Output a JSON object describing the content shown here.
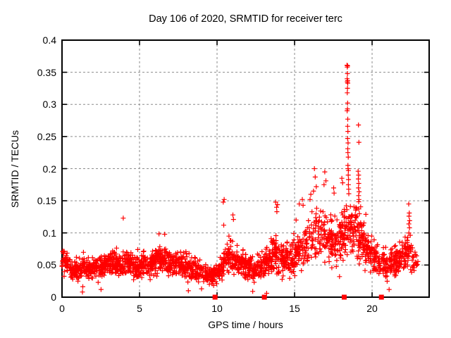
{
  "chart": {
    "title": "Day 106 of 2020, SRMTID for receiver terc",
    "xlabel": "GPS time / hours",
    "ylabel": "SRMTID / TECUs"
  },
  "chart_data": {
    "type": "scatter",
    "title": "Day 106 of 2020, SRMTID for receiver terc",
    "xlabel": "GPS time / hours",
    "ylabel": "SRMTID / TECUs",
    "xlim": [
      0,
      23.68
    ],
    "ylim": [
      0,
      0.4
    ],
    "xticks": [
      0,
      5,
      10,
      15,
      20
    ],
    "yticks": [
      0,
      0.05,
      0.1,
      0.15,
      0.2,
      0.25,
      0.3,
      0.35,
      0.4
    ],
    "xtick_labels": [
      "0",
      "5",
      "10",
      "15",
      "20"
    ],
    "ytick_labels": [
      "0",
      "0.05",
      "0.1",
      "0.15",
      "0.2",
      "0.25",
      "0.3",
      "0.35",
      "0.4"
    ],
    "grid": true,
    "legend": "none",
    "marker_color": "#ff0000",
    "grid_color": "#8c8c8c",
    "frame_color": "#000000",
    "series": [
      {
        "name": "srmtid-plus-cloud",
        "marker": "plus",
        "generator": {
          "count": 2300,
          "seed": 1062020,
          "x_max": 23.0,
          "flier_prob": 0.07,
          "flier_scale": 1.45,
          "envelope": [
            [
              0.0,
              0.058,
              0.03,
              1.0
            ],
            [
              0.3,
              0.05,
              0.028,
              1.0
            ],
            [
              0.8,
              0.042,
              0.022,
              1.0
            ],
            [
              1.3,
              0.048,
              0.026,
              1.0
            ],
            [
              1.8,
              0.044,
              0.022,
              1.0
            ],
            [
              2.3,
              0.047,
              0.026,
              1.0
            ],
            [
              2.8,
              0.05,
              0.026,
              1.0
            ],
            [
              3.3,
              0.053,
              0.028,
              1.0
            ],
            [
              3.8,
              0.05,
              0.026,
              1.0
            ],
            [
              4.3,
              0.053,
              0.028,
              1.0
            ],
            [
              4.8,
              0.048,
              0.026,
              1.0
            ],
            [
              5.3,
              0.05,
              0.028,
              1.0
            ],
            [
              5.8,
              0.055,
              0.03,
              1.0
            ],
            [
              6.3,
              0.06,
              0.032,
              1.0
            ],
            [
              6.8,
              0.057,
              0.03,
              1.0
            ],
            [
              7.3,
              0.052,
              0.028,
              1.0
            ],
            [
              7.8,
              0.049,
              0.029,
              1.0
            ],
            [
              8.3,
              0.046,
              0.028,
              1.0
            ],
            [
              8.8,
              0.042,
              0.026,
              1.0
            ],
            [
              9.3,
              0.036,
              0.022,
              0.9
            ],
            [
              9.8,
              0.034,
              0.02,
              0.85
            ],
            [
              10.2,
              0.04,
              0.026,
              0.9
            ],
            [
              10.6,
              0.058,
              0.038,
              1.0
            ],
            [
              11.0,
              0.062,
              0.036,
              1.0
            ],
            [
              11.4,
              0.054,
              0.03,
              1.0
            ],
            [
              11.9,
              0.047,
              0.028,
              1.0
            ],
            [
              12.4,
              0.043,
              0.027,
              1.0
            ],
            [
              12.9,
              0.049,
              0.03,
              1.0
            ],
            [
              13.4,
              0.058,
              0.034,
              1.0
            ],
            [
              13.8,
              0.07,
              0.045,
              1.0
            ],
            [
              14.2,
              0.056,
              0.034,
              1.0
            ],
            [
              14.7,
              0.06,
              0.036,
              1.0
            ],
            [
              15.2,
              0.068,
              0.04,
              1.0
            ],
            [
              15.7,
              0.082,
              0.048,
              1.0
            ],
            [
              16.2,
              0.098,
              0.056,
              1.0
            ],
            [
              16.6,
              0.106,
              0.06,
              1.0
            ],
            [
              17.0,
              0.096,
              0.055,
              1.0
            ],
            [
              17.5,
              0.086,
              0.05,
              1.0
            ],
            [
              18.0,
              0.092,
              0.052,
              1.0
            ],
            [
              18.4,
              0.11,
              0.058,
              1.0
            ],
            [
              18.8,
              0.104,
              0.05,
              1.0
            ],
            [
              19.2,
              0.108,
              0.055,
              1.0
            ],
            [
              19.6,
              0.078,
              0.045,
              1.0
            ],
            [
              20.0,
              0.062,
              0.036,
              1.0
            ],
            [
              20.5,
              0.055,
              0.032,
              1.0
            ],
            [
              21.0,
              0.05,
              0.03,
              1.0
            ],
            [
              21.5,
              0.055,
              0.03,
              1.0
            ],
            [
              22.0,
              0.061,
              0.034,
              1.0
            ],
            [
              22.4,
              0.072,
              0.042,
              0.9
            ],
            [
              22.75,
              0.055,
              0.025,
              0.55
            ],
            [
              23.0,
              0.05,
              0.018,
              0.1
            ]
          ]
        },
        "notable_points": [
          [
            3.95,
            0.123
          ],
          [
            6.62,
            0.098
          ],
          [
            10.4,
            0.148
          ],
          [
            10.46,
            0.152
          ],
          [
            10.43,
            0.112
          ],
          [
            11.02,
            0.128
          ],
          [
            11.06,
            0.121
          ],
          [
            13.78,
            0.148
          ],
          [
            13.84,
            0.14
          ],
          [
            13.9,
            0.144
          ],
          [
            13.86,
            0.133
          ],
          [
            15.1,
            0.12
          ],
          [
            15.3,
            0.145
          ],
          [
            15.5,
            0.152
          ],
          [
            15.55,
            0.143
          ],
          [
            16.0,
            0.152
          ],
          [
            16.05,
            0.16
          ],
          [
            16.28,
            0.2
          ],
          [
            16.33,
            0.187
          ],
          [
            16.4,
            0.172
          ],
          [
            16.22,
            0.165
          ],
          [
            16.95,
            0.195
          ],
          [
            17.02,
            0.181
          ],
          [
            16.9,
            0.175
          ],
          [
            17.52,
            0.17
          ],
          [
            17.55,
            0.162
          ],
          [
            18.05,
            0.185
          ],
          [
            18.1,
            0.178
          ],
          [
            18.38,
            0.361
          ],
          [
            18.42,
            0.36
          ],
          [
            18.4,
            0.358
          ],
          [
            18.41,
            0.348
          ],
          [
            18.39,
            0.34
          ],
          [
            18.42,
            0.337
          ],
          [
            18.4,
            0.335
          ],
          [
            18.43,
            0.333
          ],
          [
            18.41,
            0.325
          ],
          [
            18.4,
            0.318
          ],
          [
            18.42,
            0.302
          ],
          [
            18.41,
            0.293
          ],
          [
            18.39,
            0.29
          ],
          [
            18.43,
            0.277
          ],
          [
            18.42,
            0.266
          ],
          [
            18.44,
            0.258
          ],
          [
            18.42,
            0.247
          ],
          [
            18.45,
            0.24
          ],
          [
            18.43,
            0.231
          ],
          [
            18.44,
            0.225
          ],
          [
            18.46,
            0.218
          ],
          [
            18.44,
            0.205
          ],
          [
            18.45,
            0.2
          ],
          [
            18.47,
            0.197
          ],
          [
            18.46,
            0.19
          ],
          [
            18.48,
            0.183
          ],
          [
            18.47,
            0.175
          ],
          [
            18.49,
            0.168
          ],
          [
            18.5,
            0.161
          ],
          [
            19.12,
            0.268
          ],
          [
            19.15,
            0.241
          ],
          [
            19.1,
            0.196
          ],
          [
            19.13,
            0.19
          ],
          [
            19.11,
            0.184
          ],
          [
            19.14,
            0.177
          ],
          [
            19.12,
            0.17
          ],
          [
            19.16,
            0.164
          ],
          [
            19.13,
            0.158
          ],
          [
            19.15,
            0.152
          ],
          [
            22.36,
            0.145
          ],
          [
            22.4,
            0.131
          ],
          [
            22.38,
            0.126
          ],
          [
            22.42,
            0.119
          ],
          [
            22.37,
            0.114
          ],
          [
            22.41,
            0.108
          ],
          [
            1.32,
            0.008
          ],
          [
            2.52,
            0.012
          ],
          [
            8.15,
            0.01
          ],
          [
            9.0,
            0.013
          ],
          [
            12.3,
            0.009
          ],
          [
            13.2,
            0.006
          ],
          [
            17.9,
            0.032
          ],
          [
            21.1,
            0.012
          ]
        ]
      },
      {
        "name": "zero-flag-squares",
        "marker": "filled-square",
        "y": 0,
        "x": [
          9.87,
          13.05,
          18.2,
          20.6
        ]
      }
    ]
  }
}
